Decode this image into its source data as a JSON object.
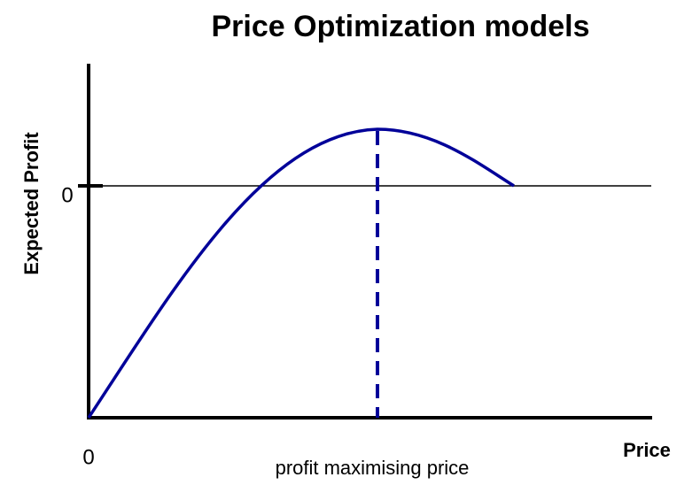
{
  "title": "Price Optimization models",
  "y_axis": {
    "label": "Expected Profit",
    "tick_label": "0"
  },
  "x_axis": {
    "label": "Price",
    "origin_label": "0"
  },
  "annotation": "profit maximising price"
}
